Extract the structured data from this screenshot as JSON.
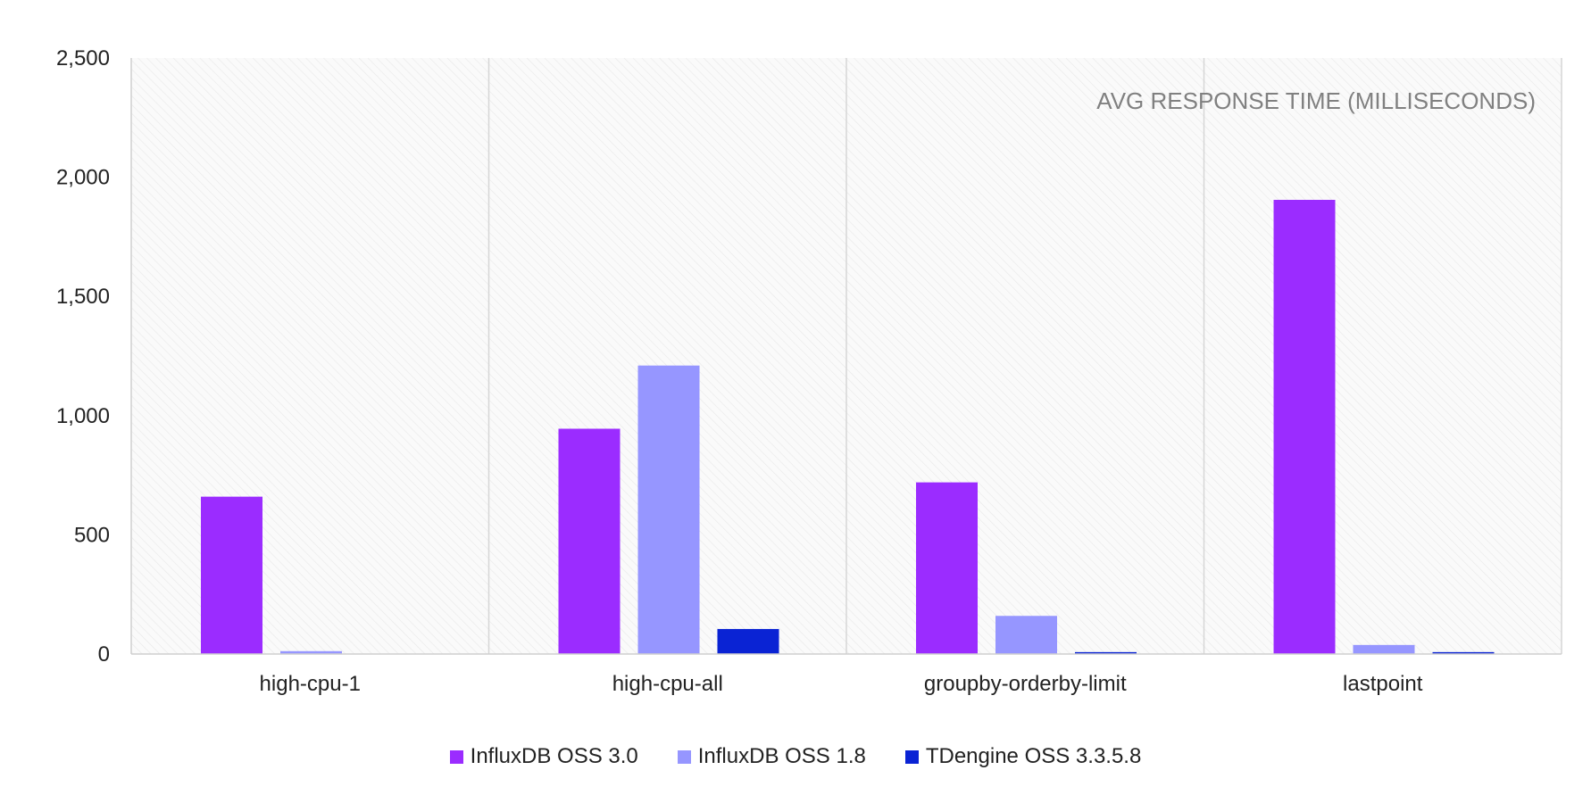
{
  "chart_data": {
    "type": "bar",
    "title": "AVG RESPONSE TIME (MILLISECONDS)",
    "categories": [
      "high-cpu-1",
      "high-cpu-all",
      "groupby-orderby-limit",
      "lastpoint"
    ],
    "series": [
      {
        "name": "InfluxDB OSS 3.0",
        "color": "#9b2cff",
        "values": [
          660,
          945,
          720,
          1905
        ]
      },
      {
        "name": "InfluxDB OSS 1.8",
        "color": "#9696ff",
        "values": [
          12,
          1210,
          160,
          38
        ]
      },
      {
        "name": "TDengine OSS 3.3.5.8",
        "color": "#0a23d4",
        "values": [
          1,
          105,
          8,
          8
        ]
      }
    ],
    "ylim": [
      0,
      2500
    ],
    "yticks": [
      0,
      500,
      1000,
      1500,
      2000,
      2500
    ],
    "ytick_labels": [
      "0",
      "500",
      "1,000",
      "1,500",
      "2,000",
      "2,500"
    ],
    "grid": false,
    "legend_position": "bottom"
  }
}
